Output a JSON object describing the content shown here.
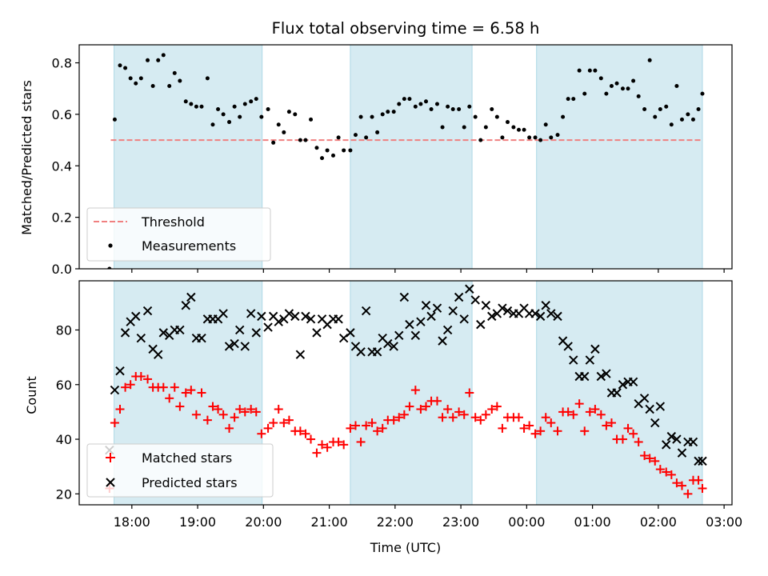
{
  "chart_data": {
    "title": "Flux total observing time = 6.58 h",
    "shared_xlabel": "Time (UTC)",
    "x_ticks": [
      "18:00",
      "19:00",
      "20:00",
      "21:00",
      "22:00",
      "23:00",
      "00:00",
      "01:00",
      "02:00",
      "03:00"
    ],
    "x_tick_hours": [
      18,
      19,
      20,
      21,
      22,
      23,
      24,
      25,
      26,
      27
    ],
    "xlim_hours": [
      17.2,
      27.12
    ],
    "shaded_intervals_hours": [
      [
        17.73,
        19.98
      ],
      [
        21.32,
        23.17
      ],
      [
        24.15,
        26.67
      ]
    ],
    "shade_color": "#add8e6",
    "panels": [
      {
        "type": "scatter",
        "ylabel": "Matched/Predicted stars",
        "ylim": [
          0,
          0.87
        ],
        "y_ticks": [
          "0.0",
          "0.2",
          "0.4",
          "0.6",
          "0.8"
        ],
        "y_tick_values": [
          0,
          0.2,
          0.4,
          0.6,
          0.8
        ],
        "threshold": {
          "name": "Threshold",
          "value": 0.5,
          "x_range_hours": [
            17.68,
            26.67
          ],
          "color": "#f08080",
          "style": "dashed"
        },
        "series": [
          {
            "name": "Measurements",
            "marker": "dot",
            "color": "#000000",
            "x": [
              17.66,
              17.74,
              17.82,
              17.9,
              17.98,
              18.06,
              18.14,
              18.24,
              18.32,
              18.4,
              18.48,
              18.57,
              18.65,
              18.73,
              18.82,
              18.9,
              18.98,
              19.06,
              19.15,
              19.23,
              19.31,
              19.39,
              19.48,
              19.56,
              19.64,
              19.72,
              19.81,
              19.89,
              19.97,
              20.07,
              20.15,
              20.23,
              20.31,
              20.39,
              20.48,
              20.56,
              20.64,
              20.72,
              20.81,
              20.89,
              20.97,
              21.06,
              21.14,
              21.22,
              21.32,
              21.4,
              21.48,
              21.56,
              21.65,
              21.73,
              21.81,
              21.89,
              21.98,
              22.06,
              22.14,
              22.22,
              22.31,
              22.39,
              22.47,
              22.55,
              22.64,
              22.72,
              22.8,
              22.88,
              22.97,
              23.05,
              23.13,
              23.22,
              23.3,
              23.38,
              23.47,
              23.55,
              23.63,
              23.71,
              23.8,
              23.88,
              23.96,
              24.04,
              24.13,
              24.21,
              24.29,
              24.37,
              24.47,
              24.55,
              24.63,
              24.71,
              24.8,
              24.88,
              24.96,
              25.04,
              25.13,
              25.21,
              25.29,
              25.37,
              25.46,
              25.54,
              25.62,
              25.7,
              25.79,
              25.87,
              25.95,
              26.03,
              26.12,
              26.2,
              26.28,
              26.36,
              26.45,
              26.53,
              26.61,
              26.67
            ],
            "values": [
              0.0,
              0.58,
              0.79,
              0.78,
              0.74,
              0.72,
              0.74,
              0.81,
              0.71,
              0.81,
              0.83,
              0.71,
              0.76,
              0.73,
              0.65,
              0.64,
              0.63,
              0.63,
              0.74,
              0.56,
              0.62,
              0.6,
              0.57,
              0.63,
              0.59,
              0.64,
              0.65,
              0.66,
              0.59,
              0.62,
              0.49,
              0.56,
              0.53,
              0.61,
              0.6,
              0.5,
              0.5,
              0.58,
              0.47,
              0.43,
              0.46,
              0.44,
              0.51,
              0.46,
              0.46,
              0.52,
              0.59,
              0.51,
              0.59,
              0.53,
              0.6,
              0.61,
              0.61,
              0.64,
              0.66,
              0.66,
              0.63,
              0.64,
              0.65,
              0.62,
              0.64,
              0.55,
              0.63,
              0.62,
              0.62,
              0.55,
              0.63,
              0.59,
              0.5,
              0.55,
              0.62,
              0.59,
              0.51,
              0.57,
              0.55,
              0.54,
              0.54,
              0.51,
              0.51,
              0.5,
              0.56,
              0.51,
              0.52,
              0.59,
              0.66,
              0.66,
              0.77,
              0.68,
              0.77,
              0.77,
              0.74,
              0.68,
              0.71,
              0.72,
              0.7,
              0.7,
              0.73,
              0.67,
              0.62,
              0.81,
              0.59,
              0.62,
              0.63,
              0.56,
              0.71,
              0.58,
              0.6,
              0.58,
              0.62,
              0.68
            ]
          }
        ],
        "legend": {
          "placement": "lower-left",
          "entries": [
            "Threshold",
            "Measurements"
          ]
        }
      },
      {
        "type": "scatter",
        "ylabel": "Count",
        "ylim": [
          16,
          98
        ],
        "y_ticks": [
          "20",
          "40",
          "60",
          "80"
        ],
        "y_tick_values": [
          20,
          40,
          60,
          80
        ],
        "xlabel": "Time (UTC)",
        "series": [
          {
            "name": "Matched stars",
            "marker": "plus",
            "color": "#ff0000",
            "x": [
              17.66,
              17.74,
              17.82,
              17.9,
              17.98,
              18.06,
              18.14,
              18.24,
              18.32,
              18.4,
              18.48,
              18.57,
              18.65,
              18.73,
              18.82,
              18.9,
              18.98,
              19.06,
              19.15,
              19.23,
              19.31,
              19.39,
              19.48,
              19.56,
              19.64,
              19.72,
              19.81,
              19.89,
              19.97,
              20.07,
              20.15,
              20.23,
              20.31,
              20.39,
              20.48,
              20.56,
              20.64,
              20.72,
              20.81,
              20.89,
              20.97,
              21.06,
              21.14,
              21.22,
              21.32,
              21.4,
              21.48,
              21.56,
              21.65,
              21.73,
              21.81,
              21.89,
              21.98,
              22.06,
              22.14,
              22.22,
              22.31,
              22.39,
              22.47,
              22.55,
              22.64,
              22.72,
              22.8,
              22.88,
              22.97,
              23.05,
              23.13,
              23.22,
              23.3,
              23.38,
              23.47,
              23.55,
              23.63,
              23.71,
              23.8,
              23.88,
              23.96,
              24.04,
              24.13,
              24.21,
              24.29,
              24.37,
              24.47,
              24.55,
              24.63,
              24.71,
              24.8,
              24.88,
              24.96,
              25.04,
              25.13,
              25.21,
              25.29,
              25.37,
              25.46,
              25.54,
              25.62,
              25.7,
              25.79,
              25.87,
              25.95,
              26.03,
              26.12,
              26.2,
              26.28,
              26.36,
              26.45,
              26.53,
              26.61,
              26.67
            ],
            "values": [
              22,
              46,
              51,
              59,
              60,
              63,
              63,
              62,
              59,
              59,
              59,
              55,
              59,
              52,
              57,
              58,
              49,
              57,
              47,
              52,
              51,
              49,
              44,
              48,
              51,
              50,
              51,
              50,
              42,
              44,
              46,
              51,
              46,
              47,
              43,
              43,
              42,
              40,
              35,
              38,
              37,
              39,
              39,
              38,
              44,
              45,
              39,
              45,
              46,
              43,
              44,
              47,
              47,
              48,
              49,
              52,
              58,
              51,
              52,
              54,
              54,
              48,
              51,
              48,
              50,
              49,
              57,
              48,
              47,
              49,
              51,
              52,
              44,
              48,
              48,
              48,
              44,
              45,
              42,
              43,
              48,
              46,
              43,
              50,
              50,
              49,
              53,
              43,
              50,
              51,
              49,
              45,
              46,
              40,
              40,
              44,
              42,
              39,
              34,
              33,
              32,
              29,
              28,
              27,
              24,
              23,
              20,
              25,
              25,
              22
            ]
          },
          {
            "name": "Predicted stars",
            "marker": "x",
            "color": "#000000",
            "x": [
              17.66,
              17.74,
              17.82,
              17.9,
              17.98,
              18.06,
              18.14,
              18.24,
              18.32,
              18.4,
              18.48,
              18.57,
              18.65,
              18.73,
              18.82,
              18.9,
              18.98,
              19.06,
              19.15,
              19.23,
              19.31,
              19.39,
              19.48,
              19.56,
              19.64,
              19.72,
              19.81,
              19.89,
              19.97,
              20.07,
              20.15,
              20.23,
              20.31,
              20.39,
              20.48,
              20.56,
              20.64,
              20.72,
              20.81,
              20.89,
              20.97,
              21.06,
              21.14,
              21.22,
              21.32,
              21.4,
              21.48,
              21.56,
              21.65,
              21.73,
              21.81,
              21.89,
              21.98,
              22.06,
              22.14,
              22.22,
              22.31,
              22.39,
              22.47,
              22.55,
              22.64,
              22.72,
              22.8,
              22.88,
              22.97,
              23.05,
              23.13,
              23.22,
              23.3,
              23.38,
              23.47,
              23.55,
              23.63,
              23.71,
              23.8,
              23.88,
              23.96,
              24.04,
              24.13,
              24.21,
              24.29,
              24.37,
              24.47,
              24.55,
              24.63,
              24.71,
              24.8,
              24.88,
              24.96,
              25.04,
              25.13,
              25.21,
              25.29,
              25.37,
              25.46,
              25.54,
              25.62,
              25.7,
              25.79,
              25.87,
              25.95,
              26.03,
              26.12,
              26.2,
              26.28,
              26.36,
              26.45,
              26.53,
              26.61,
              26.67
            ],
            "values": [
              36,
              58,
              65,
              79,
              83,
              85,
              77,
              87,
              73,
              71,
              79,
              78,
              80,
              80,
              89,
              92,
              77,
              77,
              84,
              84,
              84,
              86,
              74,
              75,
              80,
              74,
              86,
              79,
              85,
              81,
              85,
              83,
              84,
              86,
              85,
              71,
              85,
              84,
              79,
              84,
              82,
              84,
              84,
              77,
              79,
              74,
              72,
              87,
              72,
              72,
              77,
              75,
              74,
              78,
              92,
              82,
              78,
              83,
              89,
              85,
              88,
              76,
              80,
              87,
              92,
              84,
              95,
              91,
              82,
              89,
              85,
              86,
              88,
              87,
              86,
              86,
              88,
              86,
              86,
              85,
              89,
              86,
              85,
              76,
              74,
              69,
              63,
              63,
              69,
              73,
              63,
              64,
              57,
              57,
              60,
              61,
              61,
              53,
              55,
              51,
              46,
              52,
              38,
              41,
              40,
              35,
              39,
              39,
              32,
              32
            ],
            "note_last_x_only": false
          }
        ],
        "legend": {
          "placement": "lower-left",
          "entries": [
            "Matched stars",
            "Predicted stars"
          ]
        }
      }
    ]
  }
}
